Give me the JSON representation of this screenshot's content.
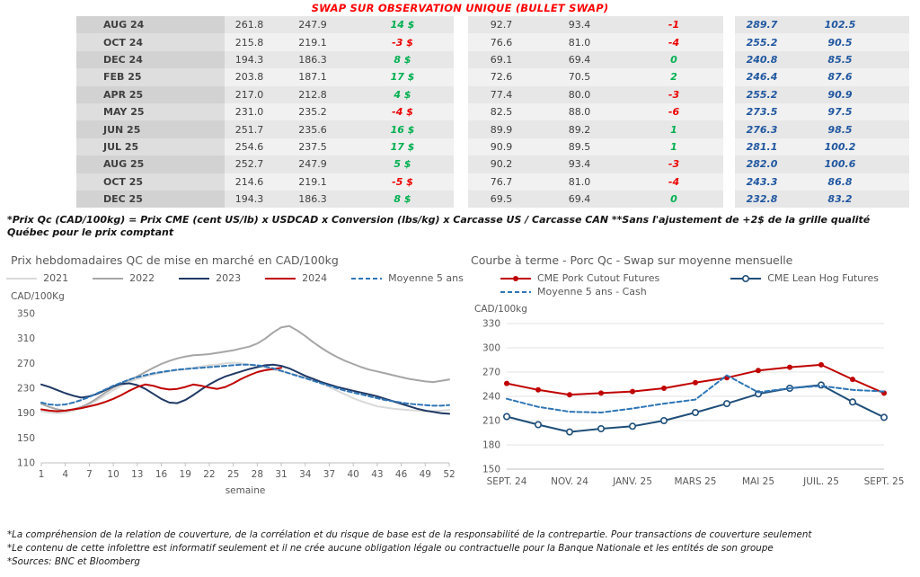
{
  "title": "SWAP SUR OBSERVATION UNIQUE (BULLET SWAP)",
  "table": {
    "rows": [
      {
        "month": "AUG 24",
        "cells": [
          {
            "t": "261.8"
          },
          {
            "t": "247.9"
          },
          {
            "t": "14 $",
            "c": "green"
          },
          {
            "t": "92.7"
          },
          {
            "t": "93.4"
          },
          {
            "t": "-1",
            "c": "red"
          },
          {
            "t": "289.7",
            "c": "blue"
          },
          {
            "t": "102.5",
            "c": "blue"
          }
        ]
      },
      {
        "month": "OCT 24",
        "cells": [
          {
            "t": "215.8"
          },
          {
            "t": "219.1"
          },
          {
            "t": "-3 $",
            "c": "red"
          },
          {
            "t": "76.6"
          },
          {
            "t": "81.0"
          },
          {
            "t": "-4",
            "c": "red"
          },
          {
            "t": "255.2",
            "c": "blue"
          },
          {
            "t": "90.5",
            "c": "blue"
          }
        ]
      },
      {
        "month": "DEC 24",
        "cells": [
          {
            "t": "194.3"
          },
          {
            "t": "186.3"
          },
          {
            "t": "8 $",
            "c": "green"
          },
          {
            "t": "69.1"
          },
          {
            "t": "69.4"
          },
          {
            "t": "0",
            "c": "green"
          },
          {
            "t": "240.8",
            "c": "blue"
          },
          {
            "t": "85.5",
            "c": "blue"
          }
        ]
      },
      {
        "month": "FEB 25",
        "cells": [
          {
            "t": "203.8"
          },
          {
            "t": "187.1"
          },
          {
            "t": "17 $",
            "c": "green"
          },
          {
            "t": "72.6"
          },
          {
            "t": "70.5"
          },
          {
            "t": "2",
            "c": "green"
          },
          {
            "t": "246.4",
            "c": "blue"
          },
          {
            "t": "87.6",
            "c": "blue"
          }
        ]
      },
      {
        "month": "APR 25",
        "cells": [
          {
            "t": "217.0"
          },
          {
            "t": "212.8"
          },
          {
            "t": "4 $",
            "c": "green"
          },
          {
            "t": "77.4"
          },
          {
            "t": "80.0"
          },
          {
            "t": "-3",
            "c": "red"
          },
          {
            "t": "255.2",
            "c": "blue"
          },
          {
            "t": "90.9",
            "c": "blue"
          }
        ]
      },
      {
        "month": "MAY 25",
        "cells": [
          {
            "t": "231.0"
          },
          {
            "t": "235.2"
          },
          {
            "t": "-4 $",
            "c": "red"
          },
          {
            "t": "82.5"
          },
          {
            "t": "88.0"
          },
          {
            "t": "-6",
            "c": "red"
          },
          {
            "t": "273.5",
            "c": "blue"
          },
          {
            "t": "97.5",
            "c": "blue"
          }
        ]
      },
      {
        "month": "JUN 25",
        "cells": [
          {
            "t": "251.7"
          },
          {
            "t": "235.6"
          },
          {
            "t": "16 $",
            "c": "green"
          },
          {
            "t": "89.9"
          },
          {
            "t": "89.2"
          },
          {
            "t": "1",
            "c": "green"
          },
          {
            "t": "276.3",
            "c": "blue"
          },
          {
            "t": "98.5",
            "c": "blue"
          }
        ]
      },
      {
        "month": "JUL 25",
        "cells": [
          {
            "t": "254.6"
          },
          {
            "t": "237.5"
          },
          {
            "t": "17 $",
            "c": "green"
          },
          {
            "t": "90.9"
          },
          {
            "t": "89.5"
          },
          {
            "t": "1",
            "c": "green"
          },
          {
            "t": "281.1",
            "c": "blue"
          },
          {
            "t": "100.2",
            "c": "blue"
          }
        ]
      },
      {
        "month": "AUG 25",
        "cells": [
          {
            "t": "252.7"
          },
          {
            "t": "247.9"
          },
          {
            "t": "5 $",
            "c": "green"
          },
          {
            "t": "90.2"
          },
          {
            "t": "93.4"
          },
          {
            "t": "-3",
            "c": "red"
          },
          {
            "t": "282.0",
            "c": "blue"
          },
          {
            "t": "100.6",
            "c": "blue"
          }
        ]
      },
      {
        "month": "OCT 25",
        "cells": [
          {
            "t": "214.6"
          },
          {
            "t": "219.1"
          },
          {
            "t": "-5 $",
            "c": "red"
          },
          {
            "t": "76.7"
          },
          {
            "t": "81.0"
          },
          {
            "t": "-4",
            "c": "red"
          },
          {
            "t": "243.3",
            "c": "blue"
          },
          {
            "t": "86.8",
            "c": "blue"
          }
        ]
      },
      {
        "month": "DEC 25",
        "cells": [
          {
            "t": "194.3"
          },
          {
            "t": "186.3"
          },
          {
            "t": "8 $",
            "c": "green"
          },
          {
            "t": "69.5"
          },
          {
            "t": "69.4"
          },
          {
            "t": "0",
            "c": "green"
          },
          {
            "t": "232.8",
            "c": "blue"
          },
          {
            "t": "83.2",
            "c": "blue"
          }
        ]
      }
    ]
  },
  "table_footnote": "*Prix Qc (CAD/100kg) = Prix CME (cent US/lb) x USDCAD x Conversion (lbs/kg) x Carcasse US / Carcasse CAN **Sans l'ajustement de +2$ de la grille qualité Québec pour le prix comptant",
  "chart_data": [
    {
      "type": "line",
      "title": "Prix hebdomadaires QC de mise en marché en CAD/100kg",
      "ylabel": "CAD/100Kg",
      "xlabel": "semaine",
      "ylim": [
        110,
        350
      ],
      "yticks": [
        110,
        150,
        190,
        230,
        270,
        310,
        350
      ],
      "xlim": [
        1,
        52
      ],
      "xticks": [
        1,
        4,
        7,
        10,
        13,
        16,
        19,
        22,
        25,
        28,
        31,
        34,
        37,
        40,
        43,
        46,
        49,
        52
      ],
      "grid": false,
      "legend_rows": [
        [
          0,
          1,
          2,
          3,
          4
        ]
      ],
      "series": [
        {
          "name": "2021",
          "color": "#d9d9d9",
          "values": [
            193,
            191,
            190,
            191,
            194,
            198,
            204,
            211,
            219,
            227,
            234,
            240,
            245,
            249,
            252,
            255,
            257,
            259,
            261,
            263,
            265,
            267,
            268,
            270,
            271,
            270,
            268,
            266,
            263,
            260,
            257,
            254,
            251,
            247,
            243,
            238,
            232,
            226,
            220,
            214,
            209,
            205,
            201,
            199,
            197,
            196,
            195,
            194,
            193,
            193,
            194,
            195
          ]
        },
        {
          "name": "2022",
          "color": "#a6a6a6",
          "values": [
            205,
            200,
            196,
            194,
            196,
            200,
            206,
            214,
            223,
            231,
            238,
            243,
            249,
            256,
            263,
            269,
            274,
            278,
            281,
            283,
            284,
            285,
            287,
            289,
            291,
            294,
            297,
            302,
            310,
            320,
            328,
            330,
            323,
            314,
            304,
            295,
            287,
            280,
            274,
            269,
            264,
            260,
            257,
            254,
            251,
            248,
            245,
            243,
            241,
            240,
            242,
            244
          ]
        },
        {
          "name": "2023",
          "color": "#1f3864",
          "values": [
            236,
            232,
            227,
            222,
            218,
            215,
            217,
            221,
            227,
            233,
            237,
            238,
            235,
            229,
            221,
            213,
            207,
            206,
            211,
            219,
            228,
            236,
            243,
            249,
            253,
            257,
            261,
            264,
            267,
            268,
            266,
            262,
            256,
            250,
            245,
            240,
            236,
            232,
            229,
            226,
            223,
            220,
            217,
            213,
            209,
            205,
            201,
            197,
            194,
            192,
            190,
            189
          ]
        },
        {
          "name": "2024",
          "color": "#c00000",
          "values": [
            196,
            194,
            193,
            194,
            196,
            198,
            201,
            204,
            208,
            213,
            219,
            226,
            232,
            236,
            234,
            230,
            228,
            229,
            232,
            236,
            234,
            231,
            229,
            232,
            238,
            245,
            251,
            256,
            259,
            261,
            263
          ]
        },
        {
          "name": "Moyenne 5 ans",
          "color": "#2e75b6",
          "dash": "5,3",
          "values": [
            207,
            204,
            203,
            204,
            207,
            211,
            216,
            222,
            228,
            234,
            239,
            244,
            248,
            251,
            254,
            256,
            258,
            260,
            261,
            262,
            263,
            264,
            265,
            266,
            267,
            268,
            268,
            267,
            265,
            262,
            258,
            254,
            250,
            246,
            242,
            238,
            234,
            230,
            226,
            223,
            220,
            217,
            214,
            211,
            209,
            207,
            205,
            204,
            203,
            202,
            202,
            203
          ]
        }
      ]
    },
    {
      "type": "line",
      "title": "Courbe à terme - Porc Qc - Swap sur moyenne mensuelle",
      "ylabel": "CAD/100kg",
      "ylim": [
        150,
        330
      ],
      "yticks": [
        150,
        180,
        210,
        240,
        270,
        300,
        330
      ],
      "grid": true,
      "n_points": 13,
      "xtick_positions": [
        0,
        2,
        4,
        6,
        8,
        10,
        12
      ],
      "xtick_labels": [
        "SEPT. 24",
        "NOV. 24",
        "JANV. 25",
        "MARS 25",
        "MAI 25",
        "JUIL. 25",
        "SEPT. 25"
      ],
      "legend_rows": [
        [
          0,
          1
        ],
        [
          2
        ]
      ],
      "series": [
        {
          "name": "CME Pork Cutout Futures",
          "color": "#c00000",
          "marker": "dot",
          "values": [
            256,
            248,
            242,
            244,
            246,
            250,
            257,
            263,
            272,
            276,
            279,
            261,
            244
          ]
        },
        {
          "name": "CME Lean Hog Futures",
          "color": "#1f4e79",
          "marker": "circle",
          "values": [
            215,
            205,
            196,
            200,
            203,
            210,
            220,
            231,
            243,
            250,
            254,
            233,
            214
          ]
        },
        {
          "name": "Moyenne 5 ans - Cash",
          "color": "#2e75b6",
          "dash": "5,3",
          "values": [
            237,
            227,
            221,
            220,
            225,
            231,
            236,
            266,
            245,
            250,
            253,
            248,
            246
          ]
        }
      ]
    }
  ],
  "footnotes": [
    "*La compréhension de la relation de couverture, de la corrélation et du risque de base est de la responsabilité de la contrepartie. Pour transactions de couverture seulement",
    "*Le contenu de cette infolettre est informatif seulement et il ne crée aucune obligation légale ou contractuelle pour la Banque Nationale et les entités de son groupe",
    "*Sources: BNC et Bloomberg"
  ],
  "colors": {
    "title_red": "#ff0000",
    "green": "#00b050",
    "red": "#ec0000",
    "blue_value": "#2057a0",
    "axis_text": "#595959"
  }
}
